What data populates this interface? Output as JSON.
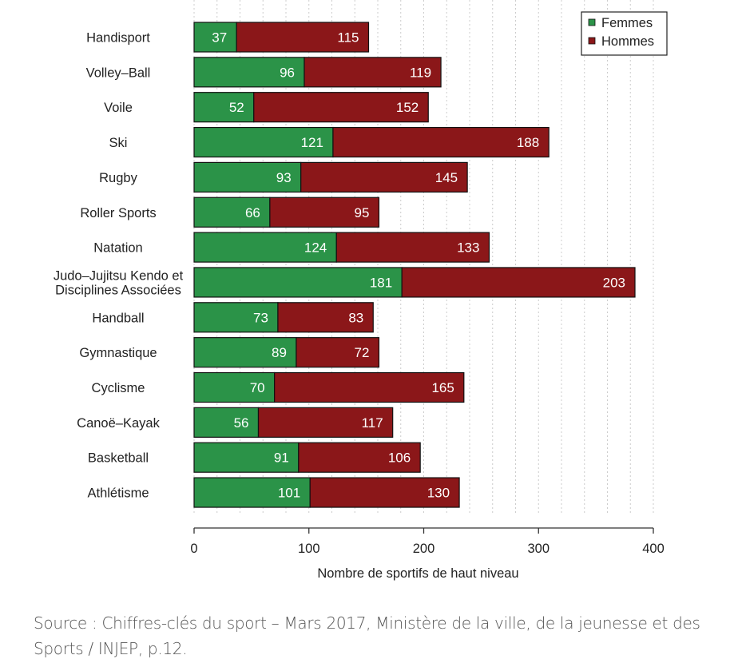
{
  "chart_data": {
    "type": "bar",
    "orientation": "horizontal",
    "stacked": true,
    "categories": [
      "Handisport",
      "Volley–Ball",
      "Voile",
      "Ski",
      "Rugby",
      "Roller Sports",
      "Natation",
      "Judo–Jujitsu Kendo et|Disciplines Associées",
      "Handball",
      "Gymnastique",
      "Cyclisme",
      "Canoë–Kayak",
      "Basketball",
      "Athlétisme"
    ],
    "series": [
      {
        "name": "Femmes",
        "color": "#2b9348",
        "values": [
          37,
          96,
          52,
          121,
          93,
          66,
          124,
          181,
          73,
          89,
          70,
          56,
          91,
          101
        ]
      },
      {
        "name": "Hommes",
        "color": "#8b1719",
        "values": [
          115,
          119,
          152,
          188,
          145,
          95,
          133,
          203,
          83,
          72,
          165,
          117,
          106,
          130
        ]
      }
    ],
    "xlabel": "Nombre de sportifs de haut niveau",
    "ylabel": "",
    "xlim": [
      0,
      400
    ],
    "xticks": [
      "0",
      "100",
      "200",
      "300",
      "400"
    ],
    "grid": "vertical dashed, every 20",
    "legend": "top-right"
  },
  "source": "Source : Chiffres-clés du sport – Mars 2017, Ministère de la ville, de la jeunesse et des Sports / INJEP, p.12."
}
